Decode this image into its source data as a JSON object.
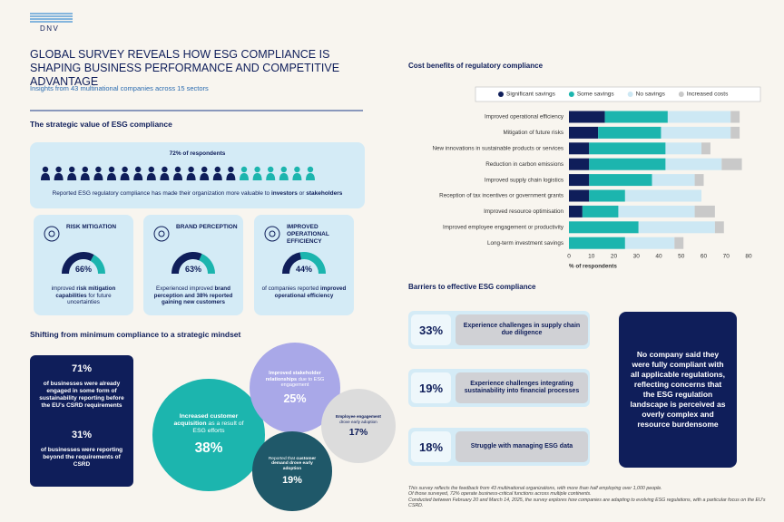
{
  "header": {
    "logo": "DNV",
    "title": "GLOBAL SURVEY REVEALS HOW ESG COMPLIANCE IS SHAPING BUSINESS PERFORMANCE AND COMPETITIVE ADVANTAGE",
    "subtitle": "Insights from 43 multinational companies across 15 sectors"
  },
  "strategic_value": {
    "heading": "The strategic value of ESG compliance",
    "respondents": "72% of respondents",
    "statement": [
      "Reported ESG regulatory compliance has made their organization more valuable to ",
      "investors",
      " or ",
      "stakeholders"
    ],
    "cards": [
      {
        "title": "RISK MITIGATION",
        "value": 66,
        "value_label": "66%",
        "description": [
          "improved ",
          "risk mitigation capabilities",
          " for future uncertainties"
        ]
      },
      {
        "title": "BRAND PERCEPTION",
        "value": 63,
        "value_label": "63%",
        "description": [
          "Experienced improved ",
          "brand perception and 38% reported gaining new customers"
        ]
      },
      {
        "title": "IMPROVED OPERATIONAL EFFICIENCY",
        "value": 44,
        "value_label": "44%",
        "description": [
          "of companies reported ",
          "improved operational efficiency"
        ]
      }
    ]
  },
  "mindset": {
    "heading": "Shifting from minimum compliance to a strategic mindset",
    "stats": [
      {
        "value_label": "71%",
        "text": "of businesses were already engaged in some form of sustainability reporting before the EU's CSRD requirements"
      },
      {
        "value_label": "31%",
        "text": "of businesses were reporting beyond the requirements of CSRD"
      }
    ],
    "bubbles": [
      {
        "value": 38,
        "value_label": "38%",
        "color": "#1cb5ae",
        "text": [
          "Increased customer acquisition",
          " as a result of ESG efforts"
        ]
      },
      {
        "value": 25,
        "value_label": "25%",
        "color": "#a9a8e8",
        "text": [
          "Improved stakeholder relationships",
          " due to ESG engagement"
        ]
      },
      {
        "value": 17,
        "value_label": "17%",
        "color": "#dcdcdc",
        "text": [
          "Employee engagement",
          " drove early adoption"
        ]
      },
      {
        "value": 19,
        "value_label": "19%",
        "color": "#1f5869",
        "text": [
          "Reported that ",
          "customer demand drove early adoption"
        ]
      }
    ]
  },
  "chart_data": {
    "type": "stacked-bar",
    "orientation": "horizontal",
    "title": "Cost benefits of regulatory compliance",
    "categories": [
      "Improved operational efficiency",
      "Mitigation of future risks",
      "New innovations in sustainable products or services",
      "Reduction in carbon emissions",
      "Improved supply chain logistics",
      "Reception of tax incentives or government grants",
      "Improved resource optimisation",
      "Improved employee engagement or productivity",
      "Long-term investment savings"
    ],
    "series": [
      {
        "name": "Significant savings",
        "color": "#0f1e5a",
        "values": [
          16,
          13,
          9,
          9,
          9,
          9,
          6,
          0,
          0
        ]
      },
      {
        "name": "Some savings",
        "color": "#1cb5ae",
        "values": [
          28,
          28,
          34,
          34,
          28,
          16,
          16,
          31,
          25
        ]
      },
      {
        "name": "No savings",
        "color": "#cde8f4",
        "values": [
          28,
          31,
          16,
          25,
          19,
          34,
          34,
          34,
          22
        ]
      },
      {
        "name": "Increased costs",
        "color": "#c9c9c9",
        "values": [
          4,
          4,
          4,
          9,
          4,
          0,
          9,
          4,
          4
        ]
      }
    ],
    "xlabel": "% of respondents",
    "xlim": [
      0,
      80
    ],
    "xticks": [
      0,
      10,
      20,
      30,
      40,
      50,
      60,
      70,
      80
    ],
    "legend": "top-right"
  },
  "barriers": {
    "heading": "Barriers to effective ESG compliance",
    "items": [
      {
        "value_label": "33%",
        "text": "Experience challenges in supply chain due diligence"
      },
      {
        "value_label": "19%",
        "text": "Experience challenges integrating sustainability into financial processes"
      },
      {
        "value_label": "18%",
        "text": "Struggle with managing ESG data"
      }
    ],
    "callout": "No company said they were fully compliant with all applicable regulations, reflecting concerns that the ESG regulation landscape is perceived as overly complex and resource burdensome"
  },
  "footnote": [
    "This survey reflects the feedback from 43 multinational organizations, with more than half employing over 1,000 people.",
    "Of those surveyed, 72% operate business-critical functions across multiple continents.",
    "Conducted between February 20 and March 14, 2025, the survey explores how companies are adapting to evolving ESG regulations, with a particular focus on the EU's CSRD."
  ]
}
